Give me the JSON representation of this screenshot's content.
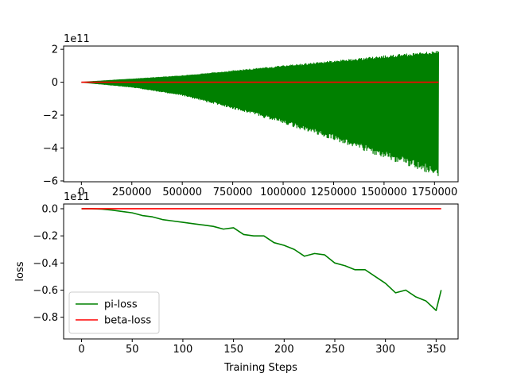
{
  "colors": {
    "pi": "#008000",
    "beta": "#ff0000",
    "axis": "#000000"
  },
  "chart_data": [
    {
      "type": "line",
      "title": "",
      "xlabel": "",
      "ylabel": "",
      "offset_text": "1e11",
      "xlim": [
        -88000,
        1867000
      ],
      "ylim": [
        -6.05,
        2.2
      ],
      "x_ticks": [
        0,
        250000,
        500000,
        750000,
        1000000,
        1250000,
        1500000,
        1750000
      ],
      "x_tick_labels": [
        "0",
        "250000",
        "500000",
        "750000",
        "1000000",
        "1250000",
        "1500000",
        "1750000"
      ],
      "y_ticks": [
        2,
        0,
        -2,
        -4,
        -6
      ],
      "y_tick_labels": [
        "2",
        "0",
        "−2",
        "−4",
        "−6"
      ],
      "legend": "none",
      "series": [
        {
          "key": "pi",
          "style": "oscillating envelope",
          "x": [
            0,
            250000,
            500000,
            750000,
            1000000,
            1250000,
            1500000,
            1770000
          ],
          "upper": [
            0,
            0.2,
            0.4,
            0.7,
            1.0,
            1.3,
            1.6,
            1.9
          ],
          "lower": [
            0,
            -0.3,
            -0.8,
            -1.6,
            -2.5,
            -3.5,
            -4.6,
            -5.7
          ]
        },
        {
          "key": "beta",
          "x": [
            0,
            1770000
          ],
          "values": [
            0,
            0
          ]
        }
      ]
    },
    {
      "type": "line",
      "title": "",
      "xlabel": "Training Steps",
      "ylabel": "loss",
      "offset_text": "1e11",
      "xlim": [
        -17.7,
        371.7
      ],
      "ylim": [
        -0.96,
        0.035
      ],
      "x_ticks": [
        0,
        50,
        100,
        150,
        200,
        250,
        300,
        350
      ],
      "x_tick_labels": [
        "0",
        "50",
        "100",
        "150",
        "200",
        "250",
        "300",
        "350"
      ],
      "y_ticks": [
        0.0,
        -0.2,
        -0.4,
        -0.6,
        -0.8
      ],
      "y_tick_labels": [
        "0.0",
        "−0.2",
        "−0.4",
        "−0.6",
        "−0.8"
      ],
      "legend": "lower-left",
      "series": [
        {
          "key": "pi",
          "name": "pi-loss",
          "x": [
            0,
            10,
            20,
            30,
            40,
            50,
            60,
            70,
            80,
            90,
            100,
            110,
            120,
            130,
            140,
            150,
            160,
            170,
            180,
            190,
            200,
            210,
            220,
            230,
            240,
            250,
            260,
            270,
            280,
            290,
            300,
            310,
            320,
            330,
            340,
            350,
            355
          ],
          "values": [
            0.0,
            0.0,
            -0.003,
            -0.01,
            -0.02,
            -0.03,
            -0.05,
            -0.06,
            -0.08,
            -0.09,
            -0.1,
            -0.11,
            -0.12,
            -0.13,
            -0.15,
            -0.14,
            -0.19,
            -0.2,
            -0.2,
            -0.25,
            -0.27,
            -0.3,
            -0.35,
            -0.33,
            -0.34,
            -0.4,
            -0.42,
            -0.45,
            -0.45,
            -0.5,
            -0.55,
            -0.62,
            -0.6,
            -0.65,
            -0.68,
            -0.75,
            -0.6
          ]
        },
        {
          "key": "beta",
          "name": "beta-loss",
          "x": [
            0,
            355
          ],
          "values": [
            0.0,
            0.0
          ]
        }
      ]
    }
  ]
}
